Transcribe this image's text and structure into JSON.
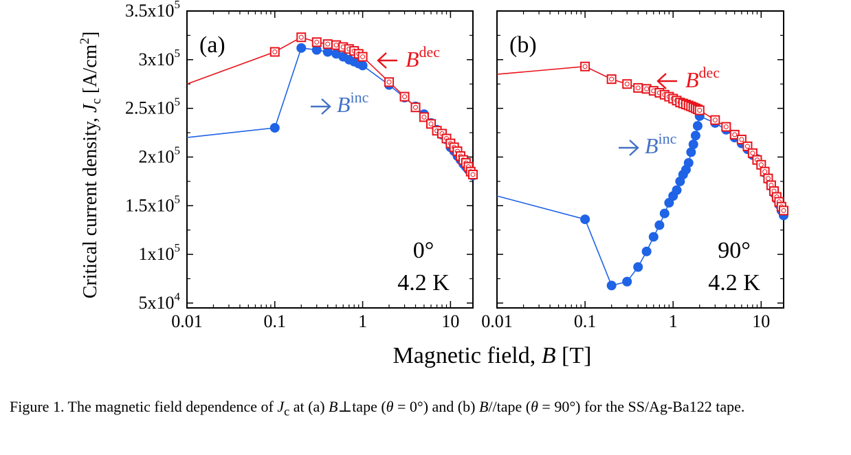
{
  "ylabel_pre": "Critical current density, ",
  "ylabel_sym": "J",
  "ylabel_sub": "c",
  "ylabel_unit": " [A/cm",
  "ylabel_unit_sup": "2",
  "ylabel_unit_end": "]",
  "xlabel_pre": "Magnetic field, ",
  "xlabel_sym": "B",
  "xlabel_unit": " [T]",
  "yticks": [
    {
      "v": 50000,
      "m": "5x10",
      "e": "4"
    },
    {
      "v": 100000,
      "m": "1x10",
      "e": "5"
    },
    {
      "v": 150000,
      "m": "1.5x10",
      "e": "5"
    },
    {
      "v": 200000,
      "m": "2x10",
      "e": "5"
    },
    {
      "v": 250000,
      "m": "2.5x10",
      "e": "5"
    },
    {
      "v": 300000,
      "m": "3x10",
      "e": "5"
    },
    {
      "v": 350000,
      "m": "3.5x10",
      "e": "5"
    }
  ],
  "xticks": [
    {
      "v": 0.01,
      "label": "0.01"
    },
    {
      "v": 0.1,
      "label": "0.1"
    },
    {
      "v": 1,
      "label": "1"
    },
    {
      "v": 10,
      "label": "10"
    }
  ],
  "colors": {
    "inc": "#1f63e6",
    "dec": "#e8141c",
    "inc_text": "#4472c4",
    "axis": "#000000"
  },
  "inc_label": {
    "sym": "B",
    "sup": "inc",
    "arrow": "right"
  },
  "dec_label": {
    "sym": "B",
    "sup": "dec",
    "arrow": "left"
  },
  "chart_data": [
    {
      "type": "line",
      "panel": "(a)",
      "angle": "0°",
      "temp": "4.2 K",
      "xscale": "log",
      "xlim": [
        0.01,
        18
      ],
      "ylim": [
        45000,
        350000
      ],
      "series": [
        {
          "marker": "filled-circle",
          "color": "#1f63e6",
          "x": [
            0.01,
            0.1,
            0.2,
            0.3,
            0.4,
            0.5,
            0.6,
            0.7,
            0.8,
            0.9,
            1.0,
            2,
            3,
            4,
            5,
            6,
            7,
            8,
            9,
            10,
            11,
            12,
            13,
            14,
            15,
            16,
            17,
            18
          ],
          "y": [
            220000,
            230000,
            312000,
            310000,
            308000,
            306000,
            303000,
            300000,
            298000,
            296000,
            294000,
            274000,
            261000,
            252000,
            244000,
            235000,
            228000,
            223000,
            218000,
            210000,
            206000,
            201000,
            197000,
            193000,
            190000,
            187000,
            184000,
            181000
          ]
        },
        {
          "marker": "open-square",
          "color": "#e8141c",
          "x": [
            0.01,
            0.1,
            0.2,
            0.3,
            0.4,
            0.5,
            0.6,
            0.7,
            0.8,
            0.9,
            1.0,
            2,
            3,
            4,
            5,
            6,
            7,
            8,
            9,
            10,
            11,
            12,
            13,
            14,
            15,
            16,
            17,
            18
          ],
          "y": [
            275000,
            308000,
            323000,
            318000,
            316000,
            315000,
            313000,
            311000,
            309000,
            306000,
            303000,
            277000,
            262000,
            251000,
            241000,
            234000,
            227000,
            224000,
            219000,
            214000,
            210000,
            206000,
            201000,
            197000,
            194000,
            190000,
            185000,
            182000
          ]
        }
      ]
    },
    {
      "type": "line",
      "panel": "(b)",
      "angle": "90°",
      "temp": "4.2 K",
      "xscale": "log",
      "xlim": [
        0.01,
        18
      ],
      "ylim": [
        45000,
        350000
      ],
      "series": [
        {
          "marker": "filled-circle",
          "color": "#1f63e6",
          "x": [
            0.01,
            0.1,
            0.2,
            0.3,
            0.4,
            0.5,
            0.6,
            0.7,
            0.8,
            0.9,
            1.0,
            1.1,
            1.2,
            1.3,
            1.4,
            1.5,
            1.6,
            1.7,
            1.8,
            1.9,
            2.0,
            3,
            4,
            5,
            6,
            7,
            8,
            9,
            10,
            11,
            12,
            13,
            14,
            15,
            16,
            17,
            18
          ],
          "y": [
            160000,
            136000,
            68000,
            72000,
            87000,
            103000,
            118000,
            130000,
            142000,
            153000,
            160000,
            166000,
            175000,
            182000,
            187000,
            194000,
            205000,
            213000,
            222000,
            232000,
            242000,
            235000,
            228000,
            220000,
            214000,
            208000,
            202000,
            198000,
            192000,
            184000,
            177000,
            170000,
            163000,
            157000,
            151000,
            145000,
            140000
          ]
        },
        {
          "marker": "open-square",
          "color": "#e8141c",
          "x": [
            0.01,
            0.1,
            0.2,
            0.3,
            0.4,
            0.5,
            0.6,
            0.7,
            0.8,
            0.9,
            1.0,
            1.1,
            1.2,
            1.3,
            1.4,
            1.5,
            1.6,
            1.7,
            1.8,
            1.9,
            2.0,
            3,
            4,
            5,
            6,
            7,
            8,
            9,
            10,
            11,
            12,
            13,
            14,
            15,
            16,
            17,
            18
          ],
          "y": [
            285000,
            293000,
            280000,
            275000,
            271000,
            270000,
            268000,
            266000,
            264000,
            262000,
            260000,
            258000,
            256000,
            255000,
            254000,
            253000,
            252000,
            251000,
            250000,
            249000,
            248000,
            238000,
            231000,
            223000,
            218000,
            211000,
            204000,
            197000,
            192000,
            185000,
            178000,
            171000,
            165000,
            159000,
            154000,
            149000,
            145000
          ]
        }
      ]
    }
  ],
  "caption": {
    "t1": "Figure 1. The magnetic field dependence of ",
    "t2": "J",
    "t3": "c",
    "t4": " at (a) ",
    "t5": "B",
    "t6": "⊥tape (",
    "t7": "θ",
    "t8": " = 0°) and (b) ",
    "t9": "B",
    "t10": "//tape (",
    "t11": "θ",
    "t12": " = 90°) for the SS/Ag-Ba122 tape."
  }
}
